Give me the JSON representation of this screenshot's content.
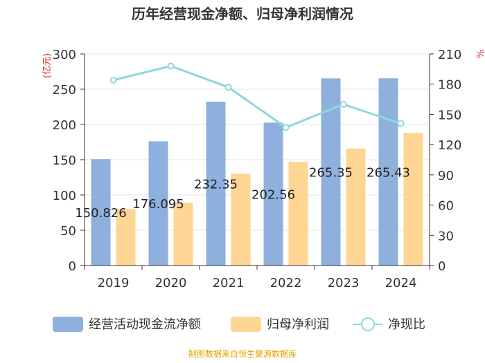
{
  "chart_data": {
    "type": "bar",
    "title": "历年经营现金净额、归母净利润情况",
    "categories": [
      "2019",
      "2020",
      "2021",
      "2022",
      "2023",
      "2024"
    ],
    "series": [
      {
        "name": "经营活动现金流净额",
        "axis": "left",
        "values": [
          150.826,
          176.095,
          232.35,
          202.56,
          265.35,
          265.43
        ],
        "data_labels": [
          "150.826",
          "176.095",
          "232.35",
          "202.56",
          "265.35",
          "265.43"
        ],
        "color": "#8eb0dd"
      },
      {
        "name": "归母净利润",
        "axis": "left",
        "values": [
          80,
          89,
          130,
          147,
          166,
          188
        ],
        "color": "#fed593"
      },
      {
        "name": "净现比",
        "type": "line",
        "axis": "right",
        "values": [
          184,
          198,
          177,
          137,
          160,
          141
        ],
        "color": "#8dd8dc"
      }
    ],
    "y_left": {
      "label": "(亿元)",
      "min": 0,
      "max": 300,
      "ticks": [
        "0",
        "50",
        "100",
        "150",
        "200",
        "250",
        "300"
      ]
    },
    "y_right": {
      "label": "%",
      "min": 0,
      "max": 210,
      "ticks": [
        "0",
        "30",
        "60",
        "90",
        "120",
        "150",
        "180",
        "210"
      ]
    },
    "grid": true,
    "legend_position": "bottom",
    "source": "制图数据来自恒生聚源数据库"
  }
}
